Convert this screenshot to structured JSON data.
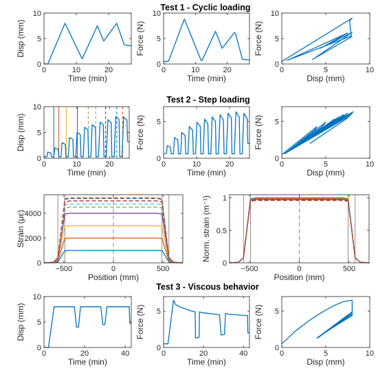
{
  "titles": [
    "Test 1 - Cyclic loading",
    "Test 2 - Step loading",
    "Test 3 - Viscous behavior"
  ],
  "colors": {
    "blue": "#0072BD",
    "orange": "#D95319",
    "yellow": "#EDB120",
    "purple": "#7E2F8E",
    "green": "#77AC30",
    "cyan": "#4DBEEE",
    "red": "#A2142F",
    "gray": "#808080"
  },
  "chart_data": [
    {
      "id": "t1-disp",
      "type": "line",
      "xlabel": "Time (min)",
      "ylabel": "Disp (mm)",
      "xlim": [
        0,
        27
      ],
      "ylim": [
        0,
        10
      ],
      "xticks": [
        0,
        10,
        20
      ],
      "yticks": [
        0,
        5,
        10
      ],
      "series": [
        {
          "color": "#0072BD",
          "x": [
            0,
            0.8,
            1.2,
            6.5,
            11.8,
            16.5,
            18.5,
            22.5,
            24.8,
            26,
            27
          ],
          "y": [
            0,
            0,
            0,
            8,
            1,
            7.5,
            4.5,
            8,
            3.8,
            3.6,
            3.6
          ]
        }
      ]
    },
    {
      "id": "t1-force",
      "type": "line",
      "xlabel": "Time (min)",
      "ylabel": "Force (N)",
      "xlim": [
        0,
        27
      ],
      "ylim": [
        0,
        10
      ],
      "xticks": [
        0,
        10,
        20
      ],
      "yticks": [
        0,
        5,
        10
      ],
      "series": [
        {
          "color": "#0072BD",
          "x": [
            0,
            1.2,
            1.6,
            6.5,
            6.8,
            11.8,
            12.1,
            16.3,
            16.6,
            18.4,
            18.8,
            22.3,
            22.6,
            24.8,
            27
          ],
          "y": [
            0.5,
            0.5,
            0.6,
            8.8,
            8.4,
            0.7,
            0.7,
            6.4,
            6.0,
            3.1,
            3.4,
            6.2,
            6.0,
            0.9,
            0.8
          ]
        }
      ]
    },
    {
      "id": "t1-fd",
      "type": "line",
      "xlabel": "Disp (mm)",
      "ylabel": "Force (N)",
      "xlim": [
        0,
        10
      ],
      "ylim": [
        0,
        10
      ],
      "xticks": [
        0,
        5,
        10
      ],
      "yticks": [
        0,
        5,
        10
      ],
      "series": [
        {
          "color": "#0072BD",
          "x": [
            0,
            8,
            7.7,
            7.9,
            0.6,
            7.5,
            4.4,
            8,
            3.6,
            3.5,
            8
          ],
          "y": [
            0.5,
            9,
            8.5,
            5.5,
            0.7,
            6.1,
            3.1,
            6.2,
            1.0,
            0.9,
            5.4
          ]
        }
      ]
    },
    {
      "id": "t2-disp",
      "type": "line",
      "xlabel": "Time (min)",
      "ylabel": "Disp (mm)",
      "xlim": [
        0,
        26
      ],
      "ylim": [
        0,
        10
      ],
      "xticks": [
        0,
        10,
        20
      ],
      "yticks": [
        0,
        5,
        10
      ],
      "series": [
        {
          "color": "#0072BD",
          "x": [
            0,
            0.3,
            0.9,
            1.1,
            2.1,
            2.3,
            3.0,
            3.3,
            4.3,
            4.5,
            5.2,
            5.5,
            6.5,
            6.7,
            7.4,
            7.8,
            8.8,
            9.0,
            9.7,
            10.1,
            11.1,
            11.3,
            12.0,
            12.4,
            13.4,
            13.6,
            14.3,
            14.7,
            15.7,
            15.9,
            16.6,
            17.1,
            18.1,
            18.3,
            19.0,
            19.5,
            20.5,
            20.7,
            21.4,
            21.9,
            22.9,
            23.1,
            23.8,
            24.3,
            25.3,
            25.5,
            26
          ],
          "y": [
            0.3,
            0.3,
            0.3,
            1.2,
            1.0,
            0.3,
            0.3,
            2.0,
            1.8,
            0.3,
            0.3,
            3.0,
            2.7,
            0.3,
            0.3,
            4.0,
            3.7,
            0.3,
            0.3,
            5.0,
            4.6,
            0.3,
            0.3,
            6.0,
            5.5,
            0.3,
            0.3,
            6.5,
            6.0,
            0.3,
            0.3,
            7.0,
            6.5,
            0.3,
            0.3,
            7.5,
            6.9,
            0.3,
            0.3,
            8.1,
            7.5,
            0.3,
            0.3,
            8.0,
            7.4,
            3.2,
            3.2
          ]
        }
      ],
      "markers": [
        {
          "x": 3.0,
          "color": "#0072BD",
          "dash": false
        },
        {
          "x": 4.5,
          "color": "#D95319",
          "dash": false
        },
        {
          "x": 6.8,
          "color": "#EDB120",
          "dash": false
        },
        {
          "x": 10.2,
          "color": "#7E2F8E",
          "dash": false
        },
        {
          "x": 13.5,
          "color": "#77AC30",
          "dash": true
        },
        {
          "x": 15.8,
          "color": "#4DBEEE",
          "dash": true
        },
        {
          "x": 18.8,
          "color": "#A2142F",
          "dash": true
        },
        {
          "x": 22.2,
          "color": "#0072BD",
          "dash": true
        },
        {
          "x": 24.0,
          "color": "#D95319",
          "dash": true
        }
      ]
    },
    {
      "id": "t2-force",
      "type": "line",
      "xlabel": "Time (min)",
      "ylabel": "Force (N)",
      "xlim": [
        0,
        26
      ],
      "ylim": [
        0,
        7
      ],
      "xticks": [
        0,
        10,
        20
      ],
      "yticks": [
        0,
        5
      ],
      "series": [
        {
          "color": "#0072BD",
          "x": [
            0,
            0.3,
            0.9,
            1.1,
            2.1,
            2.3,
            3.0,
            3.3,
            4.3,
            4.5,
            5.2,
            5.5,
            6.5,
            6.7,
            7.4,
            7.8,
            8.8,
            9.0,
            9.7,
            10.1,
            11.1,
            11.3,
            12.0,
            12.4,
            13.4,
            13.6,
            14.3,
            14.7,
            15.7,
            15.9,
            16.6,
            17.1,
            18.1,
            18.3,
            19.0,
            19.5,
            20.5,
            20.7,
            21.4,
            21.9,
            22.9,
            23.1,
            23.8,
            24.3,
            25.3,
            25.5,
            26
          ],
          "y": [
            0.6,
            0.6,
            0.7,
            1.7,
            1.5,
            0.6,
            0.6,
            2.8,
            2.5,
            0.6,
            0.6,
            3.5,
            3.1,
            0.6,
            0.6,
            4.3,
            3.8,
            0.6,
            0.6,
            4.9,
            4.3,
            0.6,
            0.6,
            5.3,
            4.7,
            0.6,
            0.6,
            5.6,
            5.0,
            0.6,
            0.6,
            5.9,
            5.2,
            0.6,
            0.6,
            6.1,
            5.5,
            0.6,
            0.6,
            6.3,
            5.6,
            0.6,
            0.6,
            6.1,
            5.4,
            2.0,
            2.0
          ]
        }
      ]
    },
    {
      "id": "t2-fd",
      "type": "line",
      "xlabel": "Disp (mm)",
      "ylabel": "Force (N)",
      "xlim": [
        0,
        10
      ],
      "ylim": [
        0,
        7
      ],
      "xticks": [
        0,
        5,
        10
      ],
      "yticks": [
        0,
        5
      ],
      "series": [
        {
          "color": "#0072BD",
          "x": [
            0,
            4,
            3.7,
            0.3
          ],
          "y": [
            0.5,
            4.3,
            3.8,
            0.6
          ]
        },
        {
          "color": "#0072BD",
          "x": [
            0.3,
            5,
            4.6,
            0.3
          ],
          "y": [
            0.6,
            4.9,
            4.3,
            0.6
          ]
        },
        {
          "color": "#0072BD",
          "x": [
            0.3,
            6,
            5.5,
            0.3
          ],
          "y": [
            0.6,
            5.3,
            4.7,
            0.6
          ]
        },
        {
          "color": "#0072BD",
          "x": [
            0.3,
            6.5,
            6.0,
            0.3
          ],
          "y": [
            0.6,
            5.6,
            5.0,
            0.6
          ]
        },
        {
          "color": "#0072BD",
          "x": [
            0.3,
            7.0,
            6.5,
            0.3
          ],
          "y": [
            0.6,
            5.9,
            5.2,
            0.6
          ]
        },
        {
          "color": "#0072BD",
          "x": [
            0.3,
            7.5,
            6.9,
            0.3
          ],
          "y": [
            0.6,
            6.1,
            5.5,
            0.6
          ]
        },
        {
          "color": "#0072BD",
          "x": [
            0.3,
            8.1,
            7.5,
            0.3
          ],
          "y": [
            0.6,
            6.3,
            5.6,
            0.6
          ]
        },
        {
          "color": "#0072BD",
          "x": [
            0.3,
            8.0,
            7.4,
            3.2
          ],
          "y": [
            0.6,
            6.1,
            5.4,
            2.0
          ]
        }
      ]
    },
    {
      "id": "strain",
      "type": "line",
      "xlabel": "Position (mm)",
      "ylabel": "Strain (με)",
      "xlim": [
        -700,
        700
      ],
      "ylim": [
        0,
        5500
      ],
      "xticks": [
        -500,
        0,
        500
      ],
      "yticks": [
        0,
        2000,
        4000
      ],
      "vlines": [
        {
          "x": -560,
          "color": "#808080",
          "dash": false
        },
        {
          "x": -490,
          "color": "#808080",
          "dash": false
        },
        {
          "x": 0,
          "color": "#808080",
          "dash": true
        },
        {
          "x": 490,
          "color": "#808080",
          "dash": false
        },
        {
          "x": 560,
          "color": "#808080",
          "dash": false
        }
      ],
      "profiles": [
        {
          "level": 1000,
          "color": "#0072BD",
          "dash": false
        },
        {
          "level": 2000,
          "color": "#D95319",
          "dash": false
        },
        {
          "level": 3000,
          "color": "#EDB120",
          "dash": false
        },
        {
          "level": 4000,
          "color": "#7E2F8E",
          "dash": false
        },
        {
          "level": 4500,
          "color": "#77AC30",
          "dash": true
        },
        {
          "level": 4750,
          "color": "#4DBEEE",
          "dash": true
        },
        {
          "level": 5000,
          "color": "#A2142F",
          "dash": true
        },
        {
          "level": 5200,
          "color": "#0072BD",
          "dash": true
        },
        {
          "level": 5250,
          "color": "#D95319",
          "dash": true
        }
      ]
    },
    {
      "id": "norm-strain",
      "type": "line",
      "xlabel": "Position (mm)",
      "ylabel": "Norm. strain (m⁻¹)",
      "xlim": [
        -700,
        700
      ],
      "ylim": [
        0,
        1.05
      ],
      "xticks": [
        -500,
        0,
        500
      ],
      "yticks": [
        0,
        0.5,
        1
      ],
      "vlines": [
        {
          "x": -560,
          "color": "#808080",
          "dash": false
        },
        {
          "x": -490,
          "color": "#808080",
          "dash": false
        },
        {
          "x": 0,
          "color": "#808080",
          "dash": true
        },
        {
          "x": 490,
          "color": "#808080",
          "dash": false
        },
        {
          "x": 560,
          "color": "#808080",
          "dash": false
        }
      ],
      "profiles": [
        {
          "level": 1.0,
          "color": "#0072BD",
          "dash": false
        },
        {
          "level": 0.99,
          "color": "#D95319",
          "dash": false
        },
        {
          "level": 0.985,
          "color": "#EDB120",
          "dash": false
        },
        {
          "level": 0.98,
          "color": "#7E2F8E",
          "dash": false
        },
        {
          "level": 0.975,
          "color": "#77AC30",
          "dash": true
        },
        {
          "level": 0.97,
          "color": "#4DBEEE",
          "dash": true
        },
        {
          "level": 0.97,
          "color": "#A2142F",
          "dash": true
        },
        {
          "level": 0.965,
          "color": "#0072BD",
          "dash": true
        },
        {
          "level": 0.96,
          "color": "#D95319",
          "dash": true
        }
      ]
    },
    {
      "id": "t3-disp",
      "type": "line",
      "xlabel": "Time (min)",
      "ylabel": "Disp (mm)",
      "xlim": [
        0,
        43
      ],
      "ylim": [
        0,
        10
      ],
      "xticks": [
        0,
        20,
        40
      ],
      "yticks": [
        0,
        5,
        10
      ],
      "series": [
        {
          "color": "#0072BD",
          "x": [
            0,
            2.2,
            5,
            15,
            16,
            17,
            18,
            28,
            29,
            30,
            31,
            42,
            42.3,
            43
          ],
          "y": [
            0,
            0,
            8,
            8,
            4,
            4,
            8,
            8,
            4.5,
            4.5,
            8,
            8,
            4.8,
            4.8
          ]
        }
      ]
    },
    {
      "id": "t3-force",
      "type": "line",
      "xlabel": "Time (min)",
      "ylabel": "Force (N)",
      "xlim": [
        0,
        43
      ],
      "ylim": [
        0,
        7
      ],
      "xticks": [
        0,
        20,
        40
      ],
      "yticks": [
        0,
        5
      ],
      "series": [
        {
          "color": "#0072BD",
          "x": [
            0,
            2.2,
            5,
            6,
            8,
            10,
            12,
            14,
            15.8,
            16,
            17.8,
            18,
            19,
            22,
            25,
            28,
            28.8,
            30.5,
            31,
            32,
            36,
            40,
            42,
            42.2,
            43
          ],
          "y": [
            0.5,
            0.5,
            6.5,
            5.9,
            5.6,
            5.4,
            5.2,
            5.0,
            4.9,
            1.3,
            1.4,
            4.9,
            4.8,
            4.7,
            4.6,
            4.5,
            1.7,
            1.8,
            4.7,
            4.6,
            4.5,
            4.4,
            4.4,
            2.0,
            2.0
          ]
        }
      ]
    },
    {
      "id": "t3-fd",
      "type": "line",
      "xlabel": "Disp (mm)",
      "ylabel": "Force (N)",
      "xlim": [
        0,
        10
      ],
      "ylim": [
        0,
        7
      ],
      "xticks": [
        0,
        5,
        10
      ],
      "yticks": [
        0,
        5
      ],
      "series": [
        {
          "color": "#0072BD",
          "x": [
            0,
            1.5,
            3,
            4.5,
            6,
            7,
            8,
            8,
            4,
            4.2,
            8,
            8,
            4.5,
            4.6,
            8,
            8,
            4.8,
            4.8
          ],
          "y": [
            0.5,
            2.2,
            3.6,
            4.8,
            5.8,
            6.3,
            6.5,
            4.9,
            1.3,
            1.4,
            4.9,
            4.5,
            1.7,
            1.8,
            4.7,
            4.4,
            2.0,
            2.0
          ]
        }
      ]
    }
  ]
}
